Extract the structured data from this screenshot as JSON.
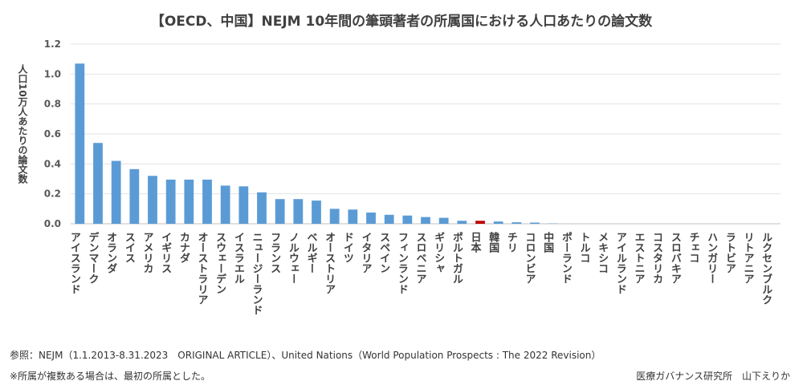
{
  "chart_data": {
    "type": "bar",
    "title": "【OECD、中国】NEJM 10年間の筆頭著者の所属国における人口あたりの論文数",
    "ylabel": "人口10万人あたりの論文数",
    "xlabel": "",
    "ylim": [
      0,
      1.2
    ],
    "yticks": [
      "0.0",
      "0.2",
      "0.4",
      "0.6",
      "0.8",
      "1.0",
      "1.2"
    ],
    "grid": true,
    "bar_color": "#5B9BD5",
    "highlight_color": "#C00000",
    "highlight_category": "日本",
    "categories": [
      "アイスランド",
      "デンマーク",
      "オランダ",
      "スイス",
      "アメリカ",
      "イギリス",
      "カナダ",
      "オーストラリア",
      "スウェーデン",
      "イスラエル",
      "ニュージーランド",
      "フランス",
      "ノルウェー",
      "ベルギー",
      "オーストリア",
      "ドイツ",
      "イタリア",
      "スペイン",
      "フィンランド",
      "スロベニア",
      "ギリシャ",
      "ポルトガル",
      "日本",
      "韓国",
      "チリ",
      "コロンビア",
      "中国",
      "ポーランド",
      "トルコ",
      "メキシコ",
      "アイルランド",
      "エストニア",
      "コスタリカ",
      "スロバキア",
      "チェコ",
      "ハンガリー",
      "ラトビア",
      "リトアニア",
      "ルクセンブルク"
    ],
    "values": [
      1.07,
      0.54,
      0.42,
      0.365,
      0.32,
      0.295,
      0.295,
      0.295,
      0.255,
      0.25,
      0.21,
      0.165,
      0.165,
      0.155,
      0.1,
      0.095,
      0.075,
      0.06,
      0.055,
      0.045,
      0.04,
      0.02,
      0.02,
      0.015,
      0.01,
      0.008,
      0.002,
      0,
      0,
      0,
      0,
      0,
      0,
      0,
      0,
      0,
      0,
      0,
      0
    ]
  },
  "footer": {
    "reference": "参照：NEJM（1.1.2013-8.31.2023　ORIGINAL ARTICLE）、United Nations（World Population Prospects : The 2022 Revision）",
    "note": "※所属が複数ある場合は、最初の所属とした。",
    "credit": "医療ガバナンス研究所　山下えりか"
  }
}
